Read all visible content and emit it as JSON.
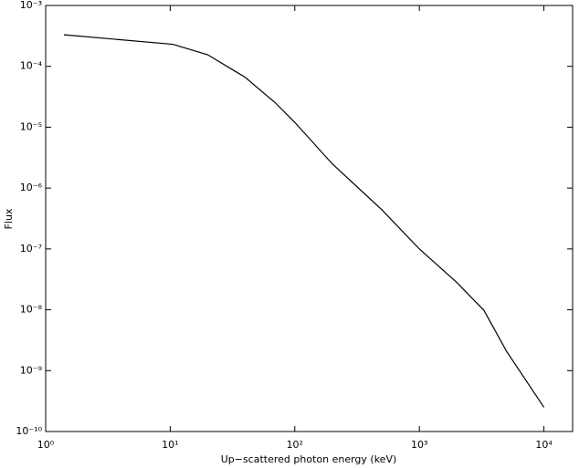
{
  "chart_data": {
    "type": "line",
    "x_label": "Up−scattered photon energy (keV)",
    "y_label": "Flux",
    "x": [
      1.4,
      10.5,
      20,
      40,
      70,
      100,
      200,
      500,
      1000,
      2000,
      3300,
      5000,
      10000
    ],
    "values": [
      0.00033,
      0.00023,
      0.000155,
      6.6e-05,
      2.5e-05,
      1.2e-05,
      2.5e-06,
      4.4e-07,
      1e-07,
      2.8e-08,
      9.8e-09,
      2.1e-09,
      2.5e-10
    ],
    "color": "#000000",
    "xlog": true,
    "ylog": true,
    "xlim": [
      1,
      17000
    ],
    "ylim": [
      1e-10,
      0.001
    ],
    "xticks": [
      {
        "value": 1,
        "label": "10⁰"
      },
      {
        "value": 10,
        "label": "10¹"
      },
      {
        "value": 100,
        "label": "10²"
      },
      {
        "value": 1000,
        "label": "10³"
      },
      {
        "value": 10000,
        "label": "10⁴"
      }
    ],
    "yticks": [
      {
        "value": 1e-10,
        "label": "10⁻¹⁰"
      },
      {
        "value": 1e-09,
        "label": "10⁻⁹"
      },
      {
        "value": 1e-08,
        "label": "10⁻⁸"
      },
      {
        "value": 1e-07,
        "label": "10⁻⁷"
      },
      {
        "value": 1e-06,
        "label": "10⁻⁶"
      },
      {
        "value": 1e-05,
        "label": "10⁻⁵"
      },
      {
        "value": 0.0001,
        "label": "10⁻⁴"
      },
      {
        "value": 0.001,
        "label": "10⁻³"
      }
    ]
  }
}
